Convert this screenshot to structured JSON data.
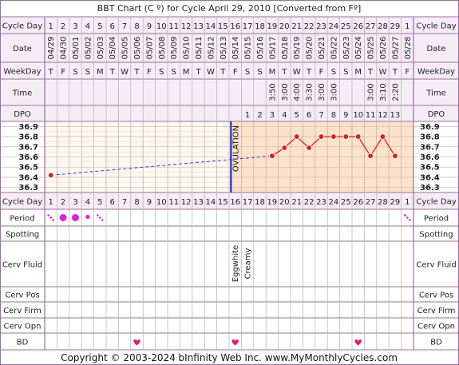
{
  "title": "BBT Chart (C º) for Cycle April 29, 2010  [Converted from Fº]",
  "copyright": "Copyright © 2003-2024 bInfinity Web Inc.    www.MyMonthlyCycles.com",
  "row_labels": {
    "cycle_day": "Cycle Day",
    "date": "Date",
    "weekday": "WeekDay",
    "time": "Time",
    "dpo": "DPO",
    "period": "Period",
    "spotting": "Spotting",
    "cerv_fluid": "Cerv Fluid",
    "cerv_pos": "Cerv Pos",
    "cerv_firm": "Cerv Firm",
    "cerv_opn": "Cerv Opn",
    "bd": "BD"
  },
  "ovulation_label": "OVULATION",
  "colors": {
    "border": "#9a6fa0",
    "header_bg": "#f5ecf5",
    "grid_pre": "#fbf8ee",
    "grid_post": "#ffe3c6",
    "temp_line": "#d42020",
    "pre_line": "#3a3ad0",
    "ovulation_line": "#1a1ad0",
    "period_dot": "#e020e0",
    "heart": "#e0206a"
  },
  "chart_data": {
    "type": "line",
    "title": "BBT Chart (C º) for Cycle April 29, 2010  [Converted from Fº]",
    "cycle_days": [
      "1",
      "2",
      "3",
      "4",
      "5",
      "6",
      "7",
      "8",
      "9",
      "10",
      "11",
      "12",
      "13",
      "14",
      "15",
      "16",
      "17",
      "18",
      "19",
      "20",
      "21",
      "22",
      "23",
      "24",
      "25",
      "26",
      "27",
      "28",
      "29",
      "1"
    ],
    "dates": [
      "04/29",
      "04/30",
      "05/01",
      "05/02",
      "05/03",
      "05/04",
      "05/05",
      "05/06",
      "05/07",
      "05/08",
      "05/09",
      "05/10",
      "05/11",
      "05/12",
      "05/13",
      "05/14",
      "05/15",
      "05/16",
      "05/17",
      "05/18",
      "05/19",
      "05/20",
      "05/21",
      "05/22",
      "05/23",
      "05/24",
      "05/25",
      "05/26",
      "05/27",
      "05/28"
    ],
    "weekdays": [
      "T",
      "F",
      "S",
      "S",
      "M",
      "T",
      "W",
      "T",
      "F",
      "S",
      "S",
      "M",
      "T",
      "W",
      "T",
      "F",
      "S",
      "S",
      "M",
      "T",
      "W",
      "T",
      "F",
      "S",
      "S",
      "M",
      "T",
      "W",
      "T",
      "F"
    ],
    "times": [
      "",
      "",
      "",
      "",
      "",
      "",
      "",
      "",
      "",
      "",
      "",
      "",
      "",
      "",
      "",
      "",
      "",
      "",
      "3:50",
      "3:00",
      "4:00",
      "3:30",
      "3:00",
      "3:00",
      "",
      "",
      "3:00",
      "3:10",
      "2:20",
      ""
    ],
    "dpo": [
      "",
      "",
      "",
      "",
      "",
      "",
      "",
      "",
      "",
      "",
      "",
      "",
      "",
      "",
      "",
      "",
      "1",
      "2",
      "3",
      "4",
      "5",
      "6",
      "7",
      "8",
      "9",
      "10",
      "11",
      "12",
      "13",
      ""
    ],
    "y_ticks": [
      "36.9",
      "36.8",
      "36.7",
      "36.6",
      "36.5",
      "36.4",
      "36.3"
    ],
    "ylim": [
      36.25,
      36.95
    ],
    "temperatures": [
      {
        "day": 1,
        "value": 36.42
      },
      {
        "day": 19,
        "value": 36.61
      },
      {
        "day": 20,
        "value": 36.69
      },
      {
        "day": 21,
        "value": 36.8
      },
      {
        "day": 22,
        "value": 36.69
      },
      {
        "day": 23,
        "value": 36.8
      },
      {
        "day": 24,
        "value": 36.8
      },
      {
        "day": 25,
        "value": 36.8
      },
      {
        "day": 26,
        "value": 36.8
      },
      {
        "day": 27,
        "value": 36.61
      },
      {
        "day": 28,
        "value": 36.8
      },
      {
        "day": 29,
        "value": 36.61
      }
    ],
    "ovulation_day": 16,
    "period": [
      {
        "day": 1,
        "type": "spotty"
      },
      {
        "day": 2,
        "type": "medium"
      },
      {
        "day": 3,
        "type": "medium"
      },
      {
        "day": 4,
        "type": "light"
      },
      {
        "day": 5,
        "type": "spotty"
      },
      {
        "day": 30,
        "type": "spotty"
      }
    ],
    "cerv_fluid": [
      {
        "day": 16,
        "text": "Eggwhite"
      },
      {
        "day": 17,
        "text": "Creamy"
      }
    ],
    "bd_days": [
      8,
      16,
      26
    ]
  }
}
